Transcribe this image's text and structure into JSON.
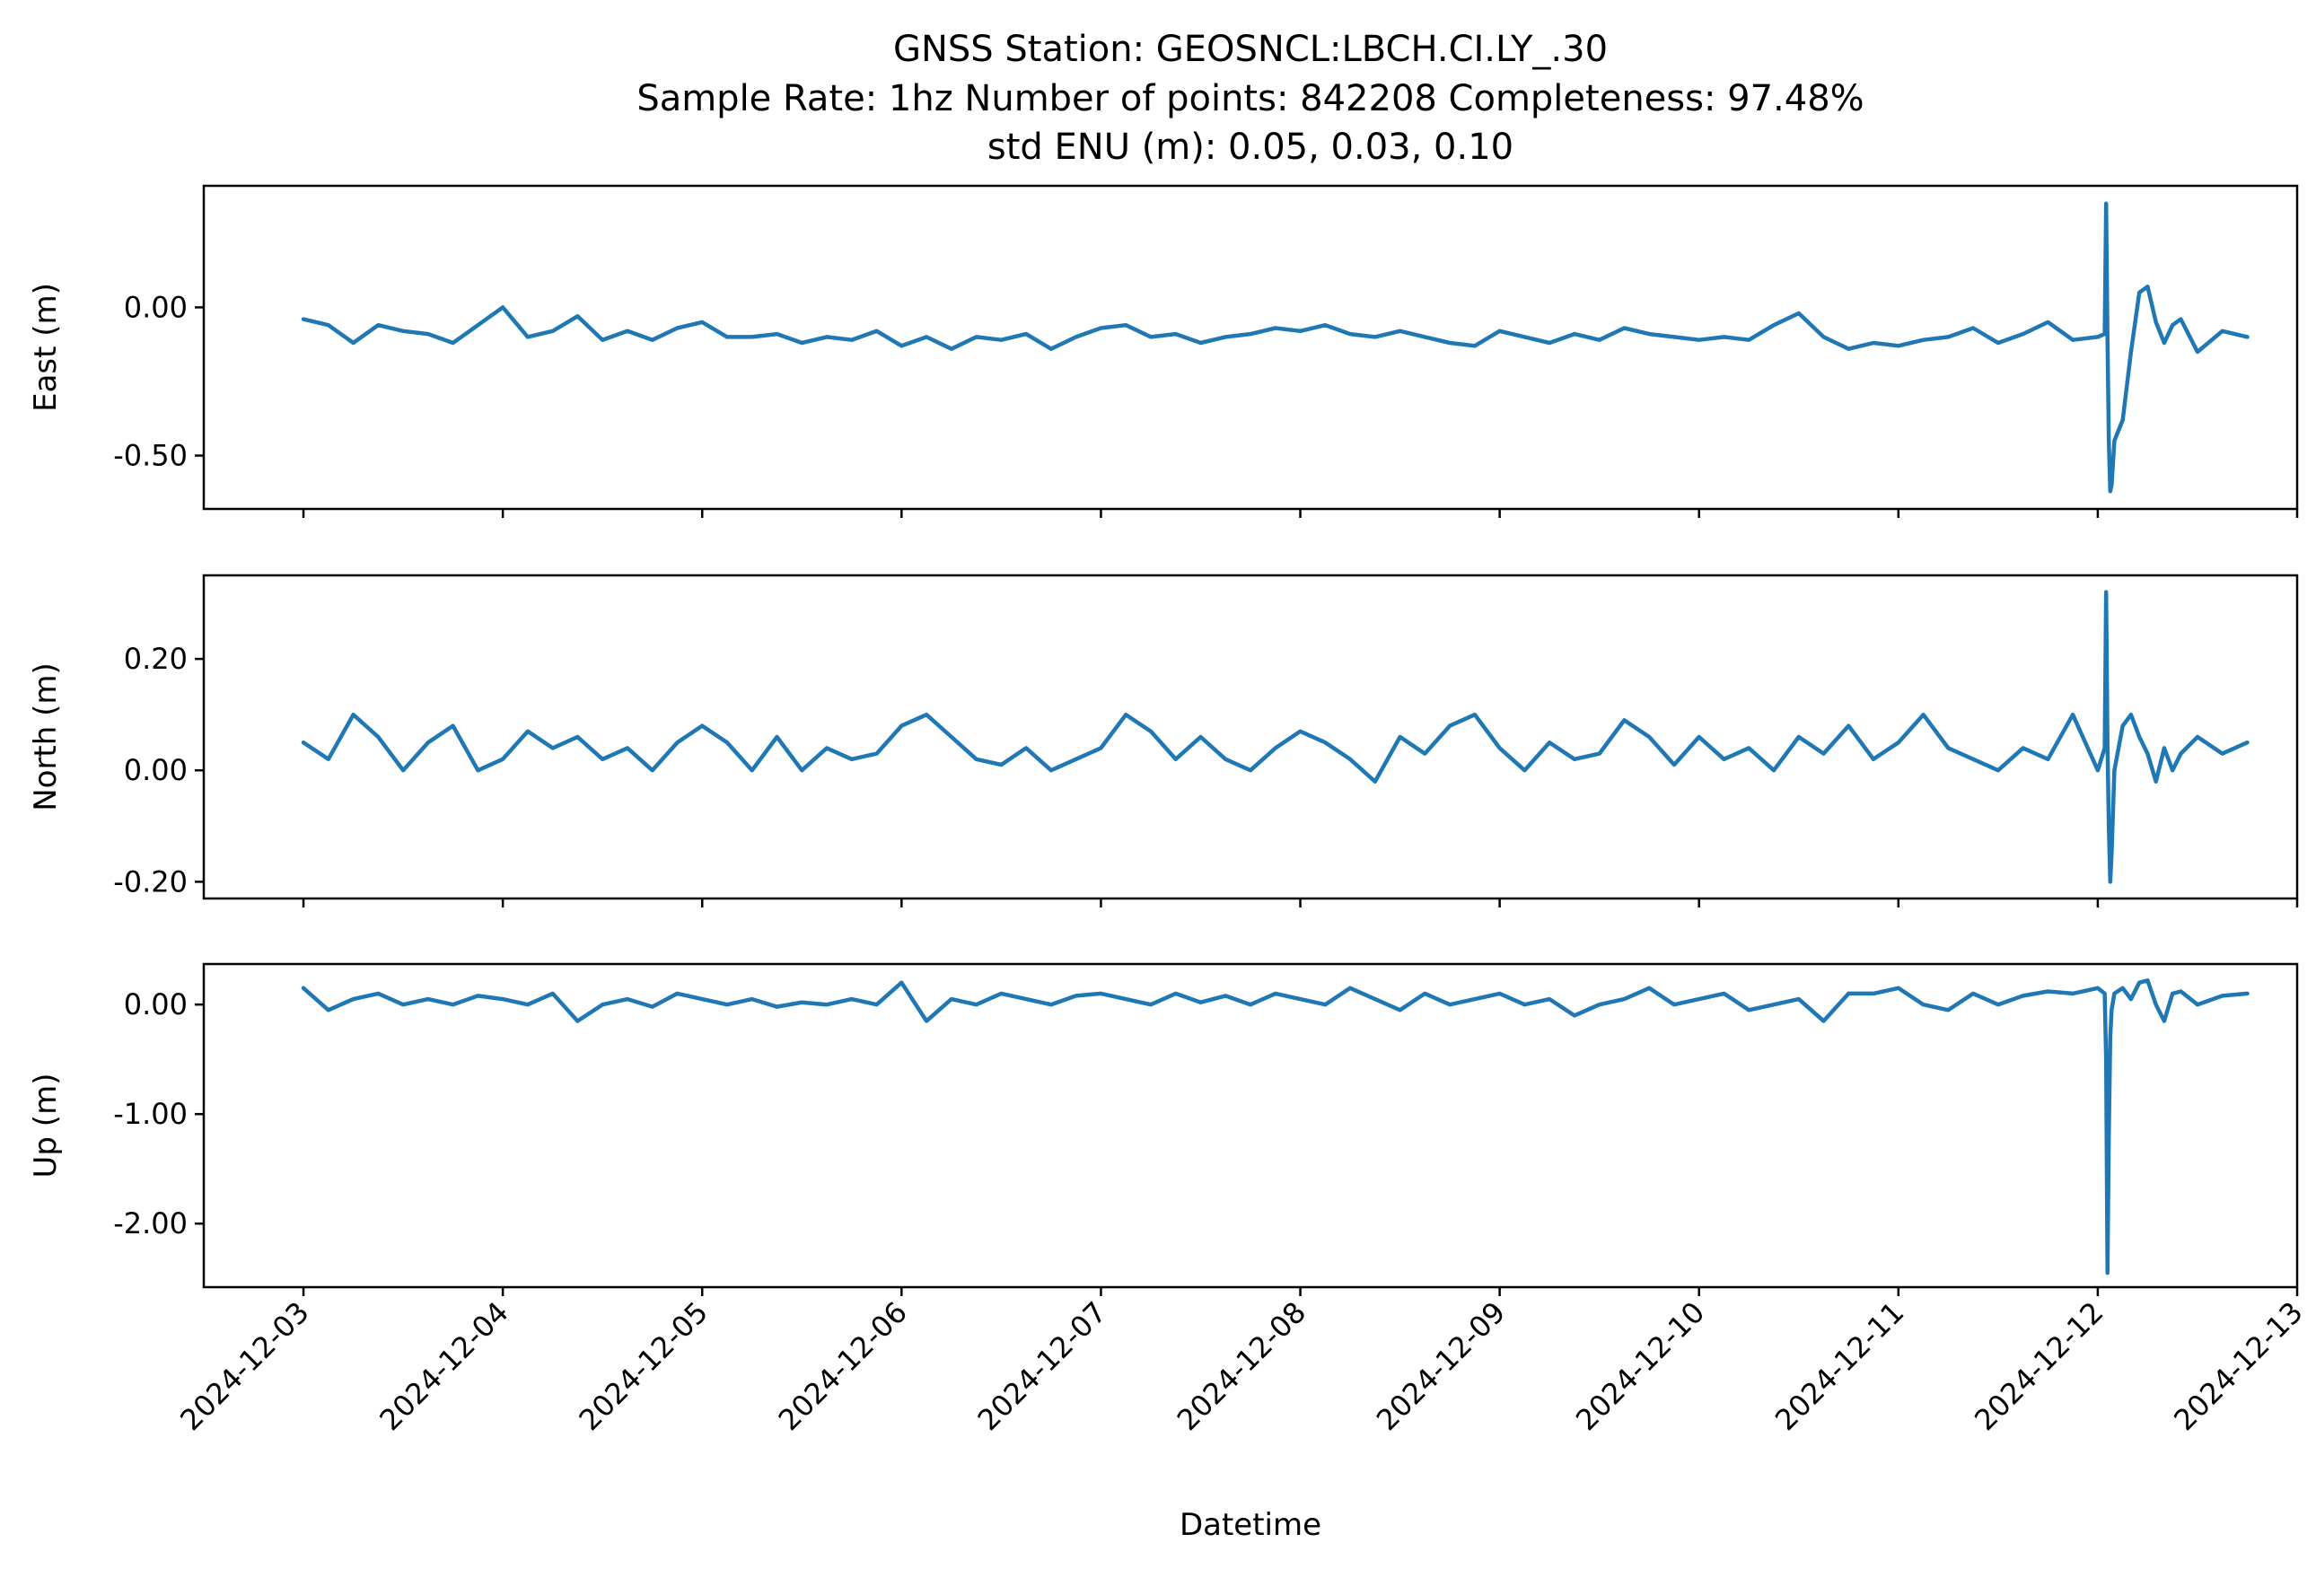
{
  "chart_data": {
    "type": "line",
    "title": [
      "GNSS Station: GEOSNCL:LBCH.CI.LY_.30",
      "Sample Rate: 1hz   Number of points: 842208    Completeness:  97.48%",
      "std ENU (m):  0.05, 0.03, 0.10"
    ],
    "xlabel": "Datetime",
    "x_tick_labels": [
      "2024-12-03",
      "2024-12-04",
      "2024-12-05",
      "2024-12-06",
      "2024-12-07",
      "2024-12-08",
      "2024-12-09",
      "2024-12-10",
      "2024-12-11",
      "2024-12-12",
      "2024-12-13"
    ],
    "x_range": [
      "2024-12-02 12:00",
      "2024-12-13 00:00"
    ],
    "grid": false,
    "color": "#1f77b4",
    "subplots": [
      {
        "ylabel": "East (m)",
        "ylim": [
          -0.68,
          0.41
        ],
        "y_ticks": [
          0.0,
          -0.5
        ],
        "y_tick_labels": [
          "0.00",
          "-0.50"
        ],
        "x": [
          "2024-12-03 00:00",
          "2024-12-03 03:00",
          "2024-12-03 06:00",
          "2024-12-03 09:00",
          "2024-12-03 12:00",
          "2024-12-03 15:00",
          "2024-12-03 18:00",
          "2024-12-03 21:00",
          "2024-12-04 00:00",
          "2024-12-04 03:00",
          "2024-12-04 06:00",
          "2024-12-04 09:00",
          "2024-12-04 12:00",
          "2024-12-04 15:00",
          "2024-12-04 18:00",
          "2024-12-04 21:00",
          "2024-12-05 00:00",
          "2024-12-05 03:00",
          "2024-12-05 06:00",
          "2024-12-05 09:00",
          "2024-12-05 12:00",
          "2024-12-05 15:00",
          "2024-12-05 18:00",
          "2024-12-05 21:00",
          "2024-12-06 00:00",
          "2024-12-06 03:00",
          "2024-12-06 06:00",
          "2024-12-06 09:00",
          "2024-12-06 12:00",
          "2024-12-06 15:00",
          "2024-12-06 18:00",
          "2024-12-06 21:00",
          "2024-12-07 00:00",
          "2024-12-07 03:00",
          "2024-12-07 06:00",
          "2024-12-07 09:00",
          "2024-12-07 12:00",
          "2024-12-07 15:00",
          "2024-12-07 18:00",
          "2024-12-07 21:00",
          "2024-12-08 00:00",
          "2024-12-08 03:00",
          "2024-12-08 06:00",
          "2024-12-08 09:00",
          "2024-12-08 12:00",
          "2024-12-08 15:00",
          "2024-12-08 18:00",
          "2024-12-08 21:00",
          "2024-12-09 00:00",
          "2024-12-09 03:00",
          "2024-12-09 06:00",
          "2024-12-09 09:00",
          "2024-12-09 12:00",
          "2024-12-09 15:00",
          "2024-12-09 18:00",
          "2024-12-09 21:00",
          "2024-12-10 00:00",
          "2024-12-10 03:00",
          "2024-12-10 06:00",
          "2024-12-10 09:00",
          "2024-12-10 12:00",
          "2024-12-10 15:00",
          "2024-12-10 18:00",
          "2024-12-10 21:00",
          "2024-12-11 00:00",
          "2024-12-11 03:00",
          "2024-12-11 06:00",
          "2024-12-11 09:00",
          "2024-12-11 12:00",
          "2024-12-11 15:00",
          "2024-12-11 18:00",
          "2024-12-11 21:00",
          "2024-12-12 00:00",
          "2024-12-12 00:50",
          "2024-12-12 01:00",
          "2024-12-12 01:10",
          "2024-12-12 01:20",
          "2024-12-12 01:30",
          "2024-12-12 01:40",
          "2024-12-12 02:00",
          "2024-12-12 03:00",
          "2024-12-12 04:00",
          "2024-12-12 05:00",
          "2024-12-12 06:00",
          "2024-12-12 07:00",
          "2024-12-12 08:00",
          "2024-12-12 09:00",
          "2024-12-12 10:00",
          "2024-12-12 12:00",
          "2024-12-12 15:00",
          "2024-12-12 18:00"
        ],
        "values": [
          -0.04,
          -0.06,
          -0.12,
          -0.06,
          -0.08,
          -0.09,
          -0.12,
          -0.06,
          0.0,
          -0.1,
          -0.08,
          -0.03,
          -0.11,
          -0.08,
          -0.11,
          -0.07,
          -0.05,
          -0.1,
          -0.1,
          -0.09,
          -0.12,
          -0.1,
          -0.11,
          -0.08,
          -0.13,
          -0.1,
          -0.14,
          -0.1,
          -0.11,
          -0.09,
          -0.14,
          -0.1,
          -0.07,
          -0.06,
          -0.1,
          -0.09,
          -0.12,
          -0.1,
          -0.09,
          -0.07,
          -0.08,
          -0.06,
          -0.09,
          -0.1,
          -0.08,
          -0.1,
          -0.12,
          -0.13,
          -0.08,
          -0.1,
          -0.12,
          -0.09,
          -0.11,
          -0.07,
          -0.09,
          -0.1,
          -0.11,
          -0.1,
          -0.11,
          -0.06,
          -0.02,
          -0.1,
          -0.14,
          -0.12,
          -0.13,
          -0.11,
          -0.1,
          -0.07,
          -0.12,
          -0.09,
          -0.05,
          -0.11,
          -0.1,
          -0.09,
          0.35,
          -0.1,
          -0.45,
          -0.62,
          -0.6,
          -0.45,
          -0.38,
          -0.15,
          0.05,
          0.07,
          -0.05,
          -0.12,
          -0.06,
          -0.04,
          -0.15,
          -0.08,
          -0.1
        ]
      },
      {
        "ylabel": "North (m)",
        "ylim": [
          -0.23,
          0.35
        ],
        "y_ticks": [
          0.2,
          0.0,
          -0.2
        ],
        "y_tick_labels": [
          "0.20",
          "0.00",
          "-0.20"
        ],
        "x": [
          "2024-12-03 00:00",
          "2024-12-03 03:00",
          "2024-12-03 06:00",
          "2024-12-03 09:00",
          "2024-12-03 12:00",
          "2024-12-03 15:00",
          "2024-12-03 18:00",
          "2024-12-03 21:00",
          "2024-12-04 00:00",
          "2024-12-04 03:00",
          "2024-12-04 06:00",
          "2024-12-04 09:00",
          "2024-12-04 12:00",
          "2024-12-04 15:00",
          "2024-12-04 18:00",
          "2024-12-04 21:00",
          "2024-12-05 00:00",
          "2024-12-05 03:00",
          "2024-12-05 06:00",
          "2024-12-05 09:00",
          "2024-12-05 12:00",
          "2024-12-05 15:00",
          "2024-12-05 18:00",
          "2024-12-05 21:00",
          "2024-12-06 00:00",
          "2024-12-06 03:00",
          "2024-12-06 06:00",
          "2024-12-06 09:00",
          "2024-12-06 12:00",
          "2024-12-06 15:00",
          "2024-12-06 18:00",
          "2024-12-06 21:00",
          "2024-12-07 00:00",
          "2024-12-07 03:00",
          "2024-12-07 06:00",
          "2024-12-07 09:00",
          "2024-12-07 12:00",
          "2024-12-07 15:00",
          "2024-12-07 18:00",
          "2024-12-07 21:00",
          "2024-12-08 00:00",
          "2024-12-08 03:00",
          "2024-12-08 06:00",
          "2024-12-08 09:00",
          "2024-12-08 12:00",
          "2024-12-08 15:00",
          "2024-12-08 18:00",
          "2024-12-08 21:00",
          "2024-12-09 00:00",
          "2024-12-09 03:00",
          "2024-12-09 06:00",
          "2024-12-09 09:00",
          "2024-12-09 12:00",
          "2024-12-09 15:00",
          "2024-12-09 18:00",
          "2024-12-09 21:00",
          "2024-12-10 00:00",
          "2024-12-10 03:00",
          "2024-12-10 06:00",
          "2024-12-10 09:00",
          "2024-12-10 12:00",
          "2024-12-10 15:00",
          "2024-12-10 18:00",
          "2024-12-10 21:00",
          "2024-12-11 00:00",
          "2024-12-11 03:00",
          "2024-12-11 06:00",
          "2024-12-11 09:00",
          "2024-12-11 12:00",
          "2024-12-11 15:00",
          "2024-12-11 18:00",
          "2024-12-11 21:00",
          "2024-12-12 00:00",
          "2024-12-12 00:50",
          "2024-12-12 01:00",
          "2024-12-12 01:10",
          "2024-12-12 01:20",
          "2024-12-12 01:30",
          "2024-12-12 01:40",
          "2024-12-12 02:00",
          "2024-12-12 03:00",
          "2024-12-12 04:00",
          "2024-12-12 05:00",
          "2024-12-12 06:00",
          "2024-12-12 07:00",
          "2024-12-12 08:00",
          "2024-12-12 09:00",
          "2024-12-12 10:00",
          "2024-12-12 12:00",
          "2024-12-12 15:00",
          "2024-12-12 18:00"
        ],
        "values": [
          0.05,
          0.02,
          0.1,
          0.06,
          0.0,
          0.05,
          0.08,
          0.0,
          0.02,
          0.07,
          0.04,
          0.06,
          0.02,
          0.04,
          0.0,
          0.05,
          0.08,
          0.05,
          0.0,
          0.06,
          0.0,
          0.04,
          0.02,
          0.03,
          0.08,
          0.1,
          0.06,
          0.02,
          0.01,
          0.04,
          0.0,
          0.02,
          0.04,
          0.1,
          0.07,
          0.02,
          0.06,
          0.02,
          0.0,
          0.04,
          0.07,
          0.05,
          0.02,
          -0.02,
          0.06,
          0.03,
          0.08,
          0.1,
          0.04,
          0.0,
          0.05,
          0.02,
          0.03,
          0.09,
          0.06,
          0.01,
          0.06,
          0.02,
          0.04,
          0.0,
          0.06,
          0.03,
          0.08,
          0.02,
          0.05,
          0.1,
          0.04,
          0.02,
          0.0,
          0.04,
          0.02,
          0.1,
          0.0,
          0.04,
          0.32,
          0.05,
          -0.1,
          -0.2,
          -0.15,
          0.0,
          0.08,
          0.1,
          0.06,
          0.03,
          -0.02,
          0.04,
          0.0,
          0.03,
          0.06,
          0.03,
          0.05
        ]
      },
      {
        "ylabel": "Up (m)",
        "ylim": [
          -2.58,
          0.37
        ],
        "y_ticks": [
          0.0,
          -1.0,
          -2.0
        ],
        "y_tick_labels": [
          "0.00",
          "-1.00",
          "-2.00"
        ],
        "x": [
          "2024-12-03 00:00",
          "2024-12-03 03:00",
          "2024-12-03 06:00",
          "2024-12-03 09:00",
          "2024-12-03 12:00",
          "2024-12-03 15:00",
          "2024-12-03 18:00",
          "2024-12-03 21:00",
          "2024-12-04 00:00",
          "2024-12-04 03:00",
          "2024-12-04 06:00",
          "2024-12-04 09:00",
          "2024-12-04 12:00",
          "2024-12-04 15:00",
          "2024-12-04 18:00",
          "2024-12-04 21:00",
          "2024-12-05 00:00",
          "2024-12-05 03:00",
          "2024-12-05 06:00",
          "2024-12-05 09:00",
          "2024-12-05 12:00",
          "2024-12-05 15:00",
          "2024-12-05 18:00",
          "2024-12-05 21:00",
          "2024-12-06 00:00",
          "2024-12-06 03:00",
          "2024-12-06 06:00",
          "2024-12-06 09:00",
          "2024-12-06 12:00",
          "2024-12-06 15:00",
          "2024-12-06 18:00",
          "2024-12-06 21:00",
          "2024-12-07 00:00",
          "2024-12-07 03:00",
          "2024-12-07 06:00",
          "2024-12-07 09:00",
          "2024-12-07 12:00",
          "2024-12-07 15:00",
          "2024-12-07 18:00",
          "2024-12-07 21:00",
          "2024-12-08 00:00",
          "2024-12-08 03:00",
          "2024-12-08 06:00",
          "2024-12-08 09:00",
          "2024-12-08 12:00",
          "2024-12-08 15:00",
          "2024-12-08 18:00",
          "2024-12-08 21:00",
          "2024-12-09 00:00",
          "2024-12-09 03:00",
          "2024-12-09 06:00",
          "2024-12-09 09:00",
          "2024-12-09 12:00",
          "2024-12-09 15:00",
          "2024-12-09 18:00",
          "2024-12-09 21:00",
          "2024-12-10 00:00",
          "2024-12-10 03:00",
          "2024-12-10 06:00",
          "2024-12-10 09:00",
          "2024-12-10 12:00",
          "2024-12-10 15:00",
          "2024-12-10 18:00",
          "2024-12-10 21:00",
          "2024-12-11 00:00",
          "2024-12-11 03:00",
          "2024-12-11 06:00",
          "2024-12-11 09:00",
          "2024-12-11 12:00",
          "2024-12-11 15:00",
          "2024-12-11 18:00",
          "2024-12-11 21:00",
          "2024-12-12 00:00",
          "2024-12-12 00:50",
          "2024-12-12 01:00",
          "2024-12-12 01:10",
          "2024-12-12 01:20",
          "2024-12-12 01:30",
          "2024-12-12 01:40",
          "2024-12-12 02:00",
          "2024-12-12 03:00",
          "2024-12-12 04:00",
          "2024-12-12 05:00",
          "2024-12-12 06:00",
          "2024-12-12 07:00",
          "2024-12-12 08:00",
          "2024-12-12 09:00",
          "2024-12-12 10:00",
          "2024-12-12 12:00",
          "2024-12-12 15:00",
          "2024-12-12 18:00"
        ],
        "values": [
          0.15,
          -0.05,
          0.05,
          0.1,
          0.0,
          0.05,
          0.0,
          0.08,
          0.05,
          0.0,
          0.1,
          -0.15,
          0.0,
          0.05,
          -0.02,
          0.1,
          0.05,
          0.0,
          0.05,
          -0.02,
          0.02,
          0.0,
          0.05,
          0.0,
          0.2,
          -0.15,
          0.05,
          0.0,
          0.1,
          0.05,
          0.0,
          0.08,
          0.1,
          0.05,
          0.0,
          0.1,
          0.02,
          0.08,
          0.0,
          0.1,
          0.05,
          0.0,
          0.15,
          0.05,
          -0.05,
          0.1,
          0.0,
          0.05,
          0.1,
          0.0,
          0.05,
          -0.1,
          0.0,
          0.05,
          0.15,
          0.0,
          0.05,
          0.1,
          -0.05,
          0.0,
          0.05,
          -0.15,
          0.1,
          0.1,
          0.15,
          0.0,
          -0.05,
          0.1,
          0.0,
          0.08,
          0.12,
          0.1,
          0.15,
          0.1,
          -0.5,
          -2.45,
          -1.2,
          -0.3,
          -0.05,
          0.1,
          0.15,
          0.05,
          0.2,
          0.22,
          0.0,
          -0.15,
          0.1,
          0.12,
          0.0,
          0.08,
          0.1
        ]
      }
    ]
  }
}
